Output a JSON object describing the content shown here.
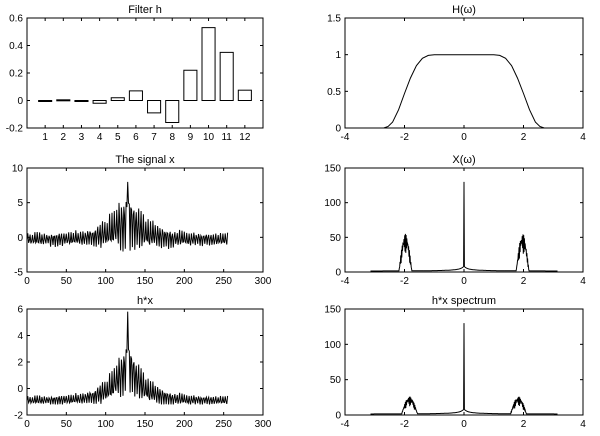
{
  "chart_data": [
    {
      "id": "filter_h",
      "type": "bar",
      "title": "Filter h",
      "categories": [
        "1",
        "2",
        "3",
        "4",
        "5",
        "6",
        "7",
        "8",
        "9",
        "10",
        "11",
        "12"
      ],
      "values": [
        0.0,
        0.005,
        0.0,
        -0.02,
        0.02,
        0.07,
        -0.09,
        -0.16,
        0.22,
        0.53,
        0.35,
        0.075
      ],
      "xlim": [
        0,
        13
      ],
      "ylim": [
        -0.2,
        0.6
      ],
      "xticks": [
        1,
        2,
        3,
        4,
        5,
        6,
        7,
        8,
        9,
        10,
        11,
        12
      ],
      "yticks": [
        -0.2,
        0,
        0.2,
        0.4,
        0.6
      ],
      "xtick_labels": [
        "1",
        "2",
        "3",
        "4",
        "5",
        "6",
        "7",
        "8",
        "9",
        "10",
        "11",
        "12"
      ],
      "ytick_labels": [
        "-0.2",
        "0",
        "0.2",
        "0.4",
        "0.6"
      ]
    },
    {
      "id": "H_omega",
      "type": "line",
      "title": "H(ω)",
      "xlim": [
        -4,
        4
      ],
      "ylim": [
        0,
        1.5
      ],
      "xticks": [
        -4,
        -2,
        0,
        2,
        4
      ],
      "yticks": [
        0,
        0.5,
        1,
        1.5
      ],
      "xtick_labels": [
        "-4",
        "-2",
        "0",
        "2",
        "4"
      ],
      "ytick_labels": [
        "0",
        "0.5",
        "1",
        "1.5"
      ],
      "series": [
        {
          "name": "H(ω)",
          "description": "symmetric low-pass magnitude response",
          "x": [
            -3.14,
            -2.7,
            -2.55,
            -2.4,
            -2.2,
            -2.0,
            -1.8,
            -1.6,
            -1.4,
            -1.2,
            -1.0,
            -0.9,
            -0.6,
            0,
            0.6,
            0.9,
            1.0,
            1.2,
            1.4,
            1.6,
            1.8,
            2.0,
            2.2,
            2.4,
            2.55,
            2.7,
            3.14
          ],
          "y": [
            0,
            0,
            0.02,
            0.08,
            0.25,
            0.47,
            0.68,
            0.85,
            0.95,
            0.99,
            1.0,
            1.0,
            1.0,
            1.0,
            1.0,
            1.0,
            1.0,
            0.99,
            0.95,
            0.85,
            0.68,
            0.47,
            0.25,
            0.08,
            0.02,
            0,
            0
          ]
        }
      ]
    },
    {
      "id": "signal_x",
      "type": "line",
      "title": "The signal x",
      "xlim": [
        0,
        300
      ],
      "ylim": [
        -5,
        10
      ],
      "xticks": [
        0,
        50,
        100,
        150,
        200,
        250,
        300
      ],
      "yticks": [
        -5,
        0,
        5,
        10
      ],
      "xtick_labels": [
        "0",
        "50",
        "100",
        "150",
        "200",
        "250",
        "300"
      ],
      "ytick_labels": [
        "-5",
        "0",
        "5",
        "10"
      ],
      "series": [
        {
          "name": "x",
          "description": "256-sample signal: baseline decaying away from a peak near n=128, with fast oscillation",
          "n_samples": 256,
          "peak_index": 128,
          "peak_value": 8,
          "baseline_edge": -0.3,
          "osc_amplitude_edge": 1.0,
          "osc_amplitude_peak": 5.5,
          "extremes": [
            -2.4,
            8
          ]
        }
      ]
    },
    {
      "id": "X_omega",
      "type": "line",
      "title": "X(ω)",
      "xlim": [
        -4,
        4
      ],
      "ylim": [
        0,
        150
      ],
      "xticks": [
        -4,
        -2,
        0,
        2,
        4
      ],
      "yticks": [
        0,
        50,
        100,
        150
      ],
      "xtick_labels": [
        "-4",
        "-2",
        "0",
        "2",
        "4"
      ],
      "ytick_labels": [
        "0",
        "50",
        "100",
        "150"
      ],
      "series": [
        {
          "name": "|X(ω)|",
          "description": "sharp central peak at 0 with clusters near ±2",
          "central_peak": 130,
          "cluster_center": 2.0,
          "cluster_extent": [
            1.75,
            2.3
          ],
          "cluster_height": 55
        }
      ]
    },
    {
      "id": "hx",
      "type": "line",
      "title": "h*x",
      "xlim": [
        0,
        300
      ],
      "ylim": [
        -2,
        6
      ],
      "xticks": [
        0,
        50,
        100,
        150,
        200,
        250,
        300
      ],
      "yticks": [
        -2,
        0,
        2,
        4,
        6
      ],
      "xtick_labels": [
        "0",
        "50",
        "100",
        "150",
        "200",
        "250",
        "300"
      ],
      "ytick_labels": [
        "-2",
        "0",
        "2",
        "4",
        "6"
      ],
      "series": [
        {
          "name": "h*x",
          "description": "filtered signal, smoother with peak ~5.8 near n=128",
          "n_samples": 256,
          "peak_index": 128,
          "peak_value": 5.8,
          "baseline_edge": -0.9,
          "osc_amplitude_edge": 0.35,
          "osc_amplitude_peak": 2.5,
          "extremes": [
            -1.2,
            5.8
          ]
        }
      ]
    },
    {
      "id": "hx_spectrum",
      "type": "line",
      "title": "h*x spectrum",
      "xlim": [
        -4,
        4
      ],
      "ylim": [
        0,
        150
      ],
      "xticks": [
        -4,
        -2,
        0,
        2,
        4
      ],
      "yticks": [
        0,
        50,
        100,
        150
      ],
      "xtick_labels": [
        "-4",
        "-2",
        "0",
        "2",
        "4"
      ],
      "ytick_labels": [
        "0",
        "50",
        "100",
        "150"
      ],
      "series": [
        {
          "name": "|H(ω)X(ω)|",
          "description": "central peak preserved, side clusters attenuated",
          "central_peak": 130,
          "cluster_center": 2.0,
          "cluster_extent": [
            1.55,
            2.25
          ],
          "cluster_height": 26
        }
      ]
    }
  ]
}
